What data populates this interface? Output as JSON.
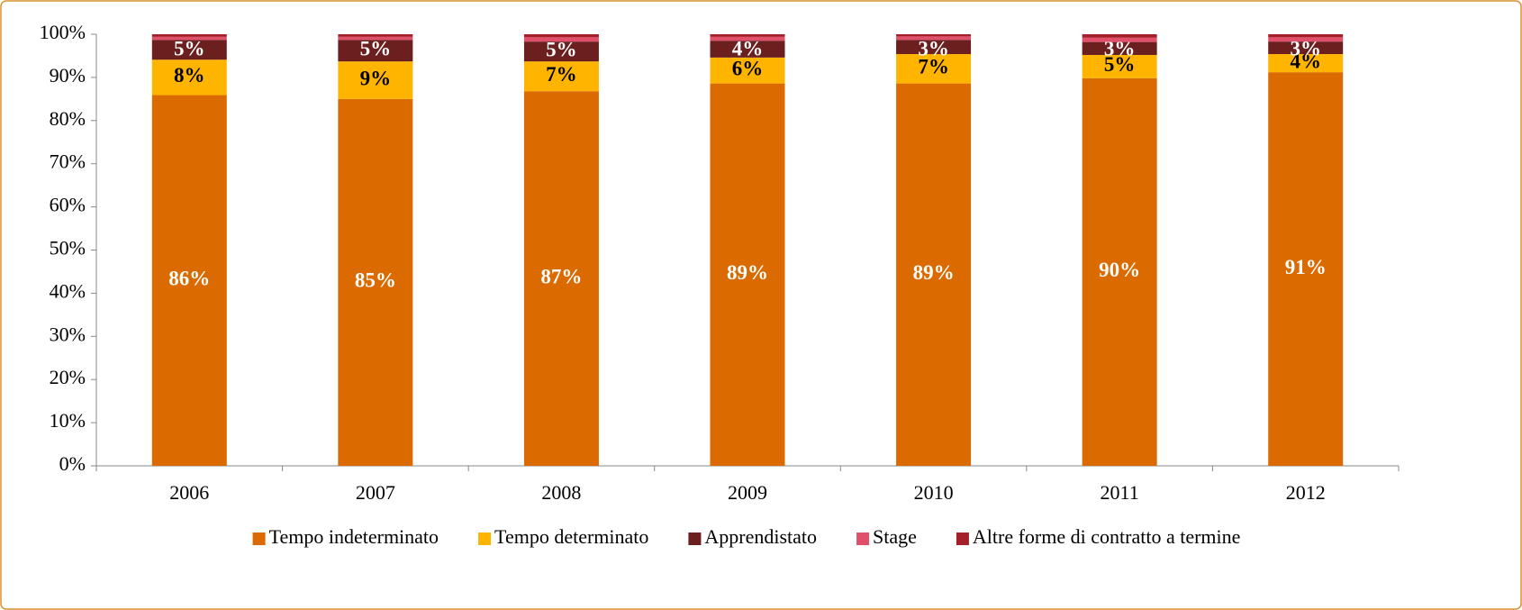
{
  "chart_data": {
    "type": "stacked-bar",
    "categories": [
      "2006",
      "2007",
      "2008",
      "2009",
      "2010",
      "2011",
      "2012"
    ],
    "series": [
      {
        "name": "Tempo indeterminato",
        "color": "#db6a00",
        "label_color": "#ffffff",
        "values": [
          85.9,
          85.0,
          86.8,
          88.6,
          88.6,
          89.8,
          91.2
        ],
        "value_labels": [
          "86%",
          "85%",
          "87%",
          "89%",
          "89%",
          "90%",
          "91%"
        ]
      },
      {
        "name": "Tempo determinato",
        "color": "#ffb500",
        "label_color": "#000000",
        "values": [
          8.2,
          8.7,
          6.9,
          6.0,
          6.8,
          5.4,
          4.2
        ],
        "value_labels": [
          "8%",
          "9%",
          "7%",
          "6%",
          "7%",
          "5%",
          "4%"
        ]
      },
      {
        "name": "Apprendistato",
        "color": "#6b1f1f",
        "label_color": "#ffffff",
        "values": [
          4.6,
          5.0,
          4.6,
          3.9,
          3.3,
          3.0,
          2.9
        ],
        "value_labels": [
          "5%",
          "5%",
          "5%",
          "4%",
          "3%",
          "3%",
          "3%"
        ]
      },
      {
        "name": "Stage",
        "color": "#e0506a",
        "values": [
          0.7,
          0.7,
          1.0,
          0.9,
          0.8,
          1.0,
          1.0
        ]
      },
      {
        "name": "Altre forme di contratto a termine",
        "color": "#a3202a",
        "values": [
          0.6,
          0.6,
          0.7,
          0.6,
          0.5,
          0.8,
          0.7
        ]
      }
    ],
    "ylim": [
      0,
      100
    ],
    "yticks": [
      {
        "value": 0,
        "label": "0%"
      },
      {
        "value": 10,
        "label": "10%"
      },
      {
        "value": 20,
        "label": "20%"
      },
      {
        "value": 30,
        "label": "30%"
      },
      {
        "value": 40,
        "label": "40%"
      },
      {
        "value": 50,
        "label": "50%"
      },
      {
        "value": 60,
        "label": "60%"
      },
      {
        "value": 70,
        "label": "70%"
      },
      {
        "value": 80,
        "label": "80%"
      },
      {
        "value": 90,
        "label": "90%"
      },
      {
        "value": 100,
        "label": "100%"
      }
    ],
    "legend": "bottom"
  }
}
